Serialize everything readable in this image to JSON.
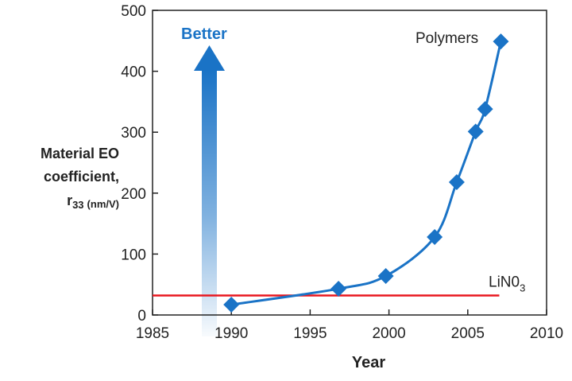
{
  "chart_data": {
    "type": "line",
    "title": "",
    "xlabel": "Year",
    "ylabel": {
      "line1": "Material EO",
      "line2": "coefficient,",
      "symbol": "r",
      "subscript": "33",
      "unit": "(nm/V)"
    },
    "xlim": [
      1985,
      2010
    ],
    "ylim": [
      0,
      500
    ],
    "xticks": [
      1985,
      1990,
      1995,
      2000,
      2005,
      2010
    ],
    "yticks": [
      0,
      100,
      200,
      300,
      400,
      500
    ],
    "grid": false,
    "series": [
      {
        "name": "Polymers",
        "marker": "diamond",
        "x": [
          1990,
          1996.8,
          1999.8,
          2002.9,
          2004.3,
          2005.5,
          2006.1,
          2007.1
        ],
        "y": [
          17,
          43,
          64,
          128,
          218,
          301,
          338,
          449
        ]
      }
    ],
    "reference_line": {
      "label_main": "LiN0",
      "label_sub": "3",
      "y": 32,
      "x_range": [
        1985,
        2007
      ]
    },
    "annotations": {
      "better_label": "Better"
    },
    "colors": {
      "series": "#1a73c6",
      "reference": "#e8171f",
      "arrow": "#1a73c6",
      "axis": "#222222"
    }
  }
}
